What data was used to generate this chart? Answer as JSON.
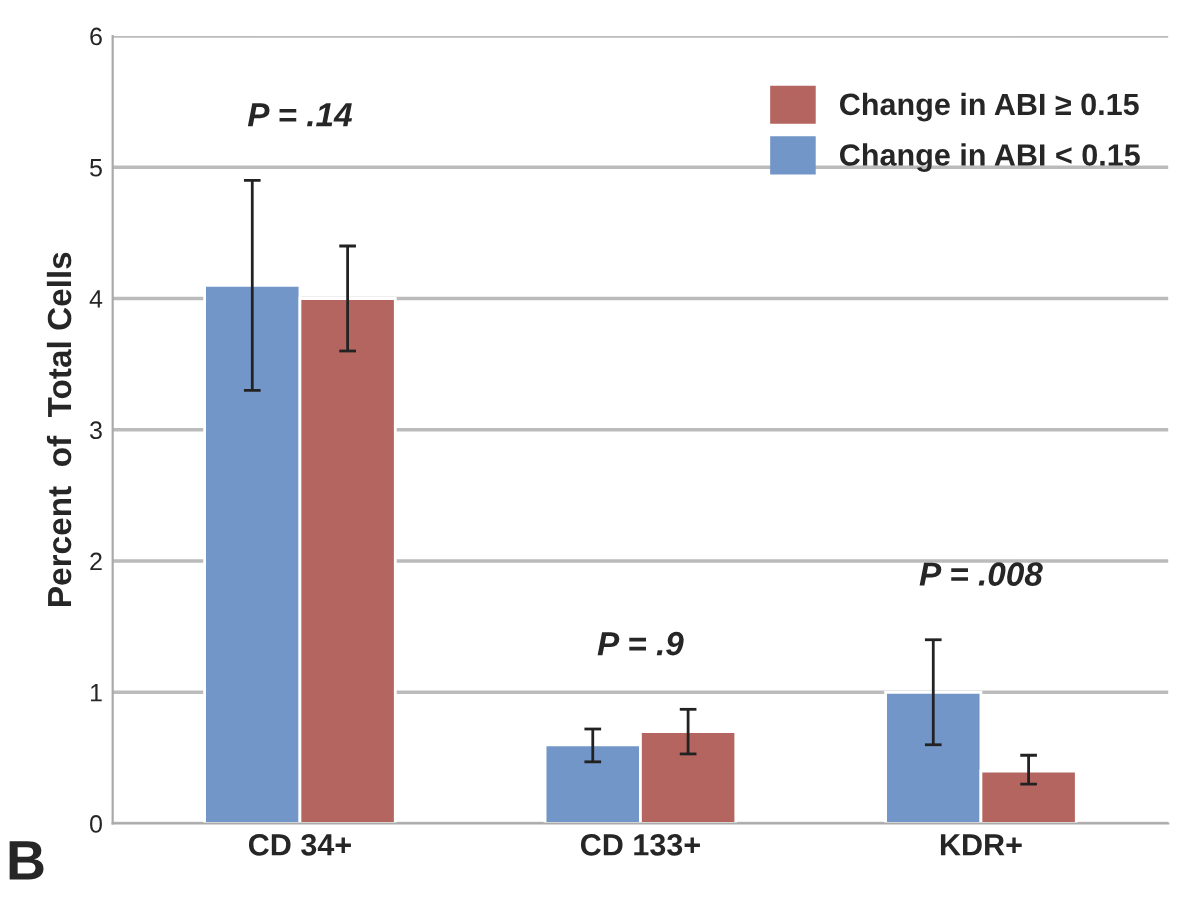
{
  "chart_data": {
    "type": "bar",
    "ylabel": "Percent  of  Total Cells",
    "categories": [
      "CD 34+",
      "CD 133+",
      "KDR+"
    ],
    "series": [
      {
        "name": "Change in ABI < 0.15",
        "color": "#7396c8",
        "values": [
          4.1,
          0.6,
          1.0
        ],
        "errors": [
          [
            3.3,
            4.9
          ],
          [
            0.47,
            0.72
          ],
          [
            0.6,
            1.4
          ]
        ]
      },
      {
        "name": "Change in ABI ≥ 0.15",
        "color": "#b5655f",
        "values": [
          4.0,
          0.7,
          0.4
        ],
        "errors": [
          [
            3.6,
            4.4
          ],
          [
            0.53,
            0.87
          ],
          [
            0.3,
            0.52
          ]
        ]
      }
    ],
    "ylim": [
      0,
      6
    ],
    "yticks": [
      0,
      1,
      2,
      3,
      4,
      5,
      6
    ],
    "grid": "y",
    "legend": "top right",
    "annotations": [
      "P = .14",
      "P = .9",
      "P = .008",
      "B"
    ]
  }
}
